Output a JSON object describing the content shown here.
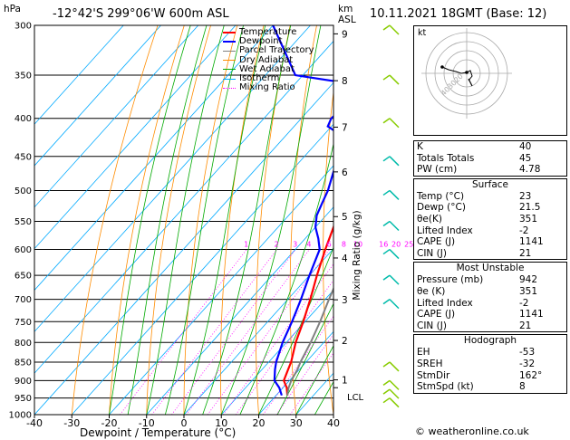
{
  "header": {
    "location": "-12°42'S  299°06'W  600m  ASL",
    "datetime": "10.11.2021  18GMT  (Base: 12)"
  },
  "chart_data": {
    "type": "line",
    "title": "",
    "xlabel": "Dewpoint / Temperature (°C)",
    "ylabel": "hPa",
    "right_axis_label": "Mixing Ratio (g/kg)",
    "km_label": "km\nASL",
    "xlim": [
      -40,
      40
    ],
    "ylim": [
      1000,
      300
    ],
    "y_scale": "log",
    "x_ticks": [
      -40,
      -30,
      -20,
      -10,
      0,
      10,
      20,
      30,
      40
    ],
    "p_levels": [
      300,
      350,
      400,
      450,
      500,
      550,
      600,
      650,
      700,
      750,
      800,
      850,
      900,
      950,
      1000
    ],
    "km_ticks": [
      {
        "km": "9",
        "p": 308
      },
      {
        "km": "8",
        "p": 356
      },
      {
        "km": "7",
        "p": 411
      },
      {
        "km": "6",
        "p": 472
      },
      {
        "km": "5",
        "p": 542
      },
      {
        "km": "4",
        "p": 616
      },
      {
        "km": "3",
        "p": 701
      },
      {
        "km": "2",
        "p": 795
      },
      {
        "km": "1",
        "p": 898
      }
    ],
    "lcl_label": "LCL",
    "lcl_p": 920,
    "mixing_ratio_labels": [
      "1",
      "2",
      "3",
      "4",
      "6",
      "8",
      "10",
      "16",
      "20",
      "25"
    ],
    "mixing_ratios": [
      1,
      2,
      3,
      4,
      6,
      8,
      10,
      16,
      20,
      25
    ],
    "legend": [
      "Temperature",
      "Dewpoint",
      "Parcel Trajectory",
      "Dry Adiabat",
      "Wet Adiabat",
      "Isotherm",
      "Mixing Ratio"
    ],
    "colors": {
      "Temperature": "#ff0000",
      "Dewpoint": "#0000ff",
      "Parcel Trajectory": "#808080",
      "Dry Adiabat": "#ff8c00",
      "Wet Adiabat": "#00aa00",
      "Isotherm": "#00aaff",
      "Mixing Ratio": "#ff00ff"
    },
    "series": [
      {
        "name": "Temperature",
        "p": [
          942,
          920,
          900,
          870,
          850,
          800,
          750,
          700,
          650,
          600,
          550,
          500,
          450,
          400,
          350,
          300
        ],
        "t": [
          23,
          21,
          18.5,
          17,
          16,
          12.5,
          9.5,
          6,
          2,
          -2,
          -6,
          -11,
          -17,
          -24,
          -33,
          -43
        ]
      },
      {
        "name": "Dewpoint",
        "p": [
          942,
          920,
          900,
          870,
          850,
          800,
          750,
          700,
          650,
          600,
          580,
          560,
          540,
          520,
          500,
          450,
          420,
          410,
          400,
          390,
          380,
          370,
          360,
          350,
          300
        ],
        "t": [
          21.5,
          19,
          16,
          13.5,
          12,
          9,
          6.5,
          3.5,
          0,
          -3.5,
          -6.5,
          -10,
          -12.5,
          -14,
          -15.5,
          -21,
          -26,
          -31,
          -32,
          -31.5,
          -31,
          -33,
          -34,
          -52,
          -70
        ]
      },
      {
        "name": "Parcel Trajectory",
        "p": [
          942,
          920,
          900,
          870,
          850,
          800,
          750,
          700,
          650,
          600,
          550,
          500,
          450,
          400,
          350,
          300
        ],
        "t": [
          23,
          21.5,
          20.5,
          19.5,
          18.5,
          16.5,
          14,
          11,
          8,
          5,
          2,
          -1.5,
          -6,
          -12,
          -20,
          -29
        ]
      }
    ]
  },
  "hodograph": {
    "unit": "kt",
    "ring_labels": [
      "40",
      "30",
      "20"
    ]
  },
  "indices": {
    "rows": [
      {
        "label": "K",
        "value": "40"
      },
      {
        "label": "Totals Totals",
        "value": "45"
      },
      {
        "label": "PW (cm)",
        "value": "4.78"
      }
    ]
  },
  "surface": {
    "title": "Surface",
    "rows": [
      {
        "label": "Temp (°C)",
        "value": "23"
      },
      {
        "label": "Dewp (°C)",
        "value": "21.5"
      },
      {
        "label": "θe(K)",
        "value": "351"
      },
      {
        "label": "Lifted Index",
        "value": "-2"
      },
      {
        "label": "CAPE (J)",
        "value": "1141"
      },
      {
        "label": "CIN (J)",
        "value": "21"
      }
    ]
  },
  "unstable": {
    "title": "Most Unstable",
    "rows": [
      {
        "label": "Pressure (mb)",
        "value": "942"
      },
      {
        "label": "θe (K)",
        "value": "351"
      },
      {
        "label": "Lifted Index",
        "value": "-2"
      },
      {
        "label": "CAPE (J)",
        "value": "1141"
      },
      {
        "label": "CIN (J)",
        "value": "21"
      }
    ]
  },
  "hodo_table": {
    "title": "Hodograph",
    "rows": [
      {
        "label": "EH",
        "value": "-53"
      },
      {
        "label": "SREH",
        "value": "-32"
      },
      {
        "label": "StmDir",
        "value": "162°"
      },
      {
        "label": "StmSpd (kt)",
        "value": "8"
      }
    ]
  },
  "footer": "© weatheronline.co.uk"
}
